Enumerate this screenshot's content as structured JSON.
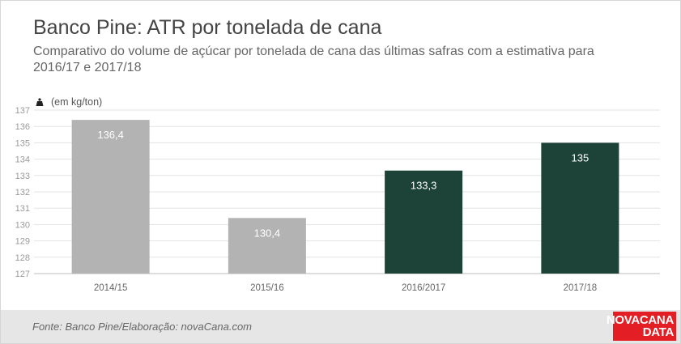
{
  "header": {
    "title": "Banco Pine: ATR por tonelada de cana",
    "subtitle": "Comparativo do volume de açúcar por tonelada de cana das últimas safras com a estimativa para 2016/17 e 2017/18"
  },
  "unit": {
    "icon": "weight-icon",
    "text": "(em kg/ton)"
  },
  "chart_data": {
    "type": "bar",
    "title": "Banco Pine: ATR por tonelada de cana",
    "ylabel": "(em kg/ton)",
    "xlabel": "",
    "categories": [
      "2014/15",
      "2015/16",
      "2016/2017",
      "2017/18"
    ],
    "values": [
      136.4,
      130.4,
      133.3,
      135
    ],
    "value_labels": [
      "136,4",
      "130,4",
      "133,3",
      "135"
    ],
    "bar_colors": [
      "#b3b3b3",
      "#b3b3b3",
      "#1d4238",
      "#1d4238"
    ],
    "ylim": [
      127,
      137
    ],
    "yticks": [
      127,
      128,
      129,
      130,
      131,
      132,
      133,
      134,
      135,
      136,
      137
    ],
    "grid": true,
    "legend": "none"
  },
  "footer": {
    "source": "Fonte: Banco Pine/Elaboração: novaCana.com",
    "logo_line1": "NOVACANA",
    "logo_line2": "DATA"
  },
  "colors": {
    "estimate": "#1d4238",
    "historical": "#b3b3b3",
    "brand": "#e31e24"
  }
}
